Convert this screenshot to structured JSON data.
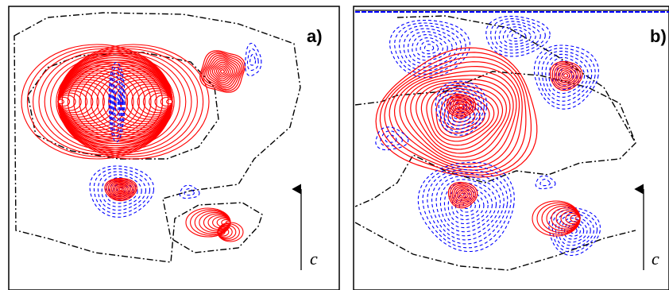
{
  "figure": {
    "panels": [
      {
        "label": "a)",
        "axis_label": "c"
      },
      {
        "label": "b)",
        "axis_label": "c"
      }
    ],
    "colors": {
      "positive_contour": "#ff0000",
      "negative_contour": "#0000ff",
      "zero_contour": "#000000",
      "frame": "#000000"
    }
  }
}
